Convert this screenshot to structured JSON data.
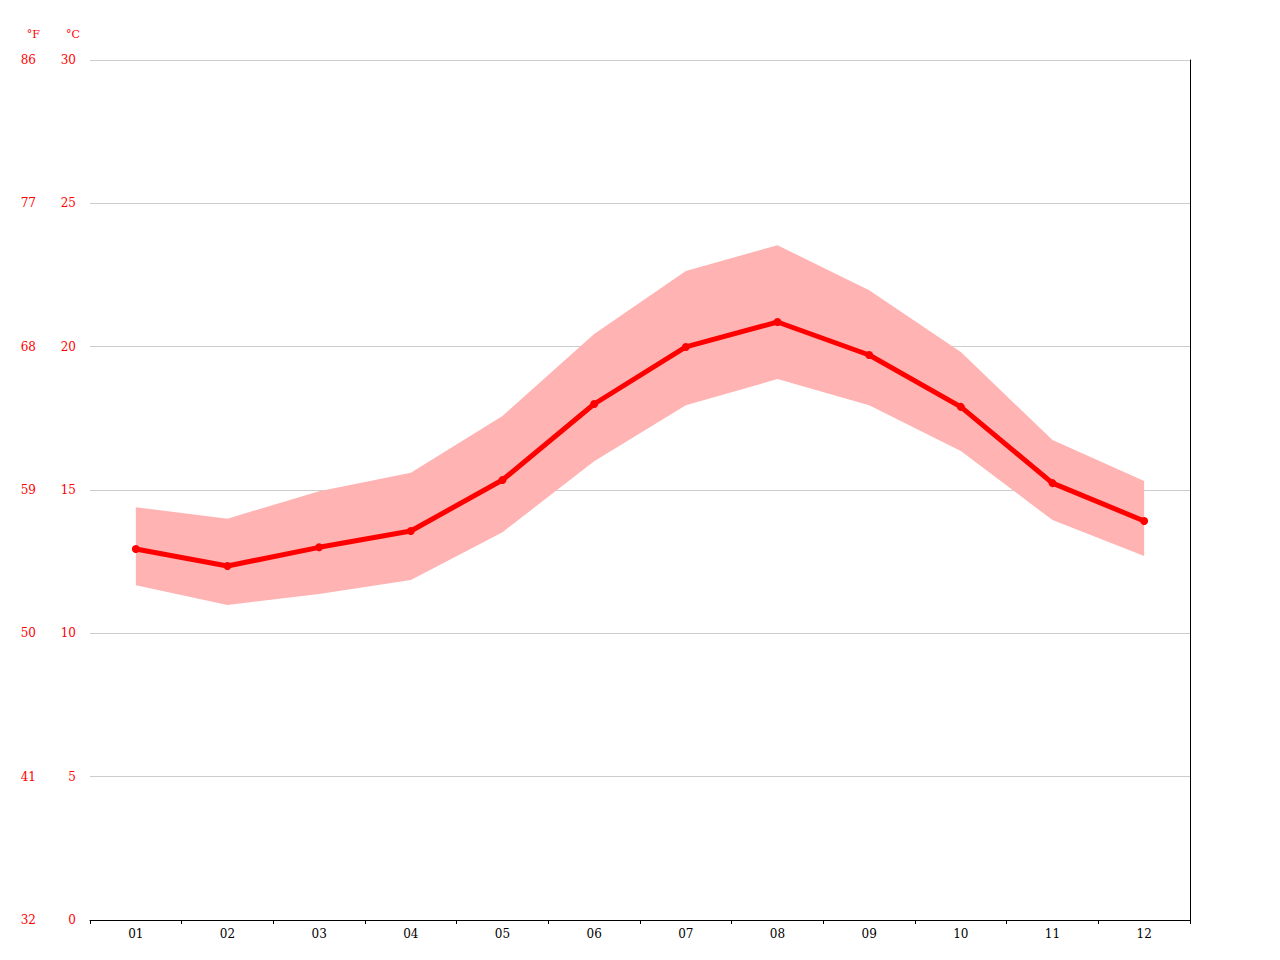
{
  "chart_data": {
    "type": "line",
    "categories": [
      "01",
      "02",
      "03",
      "04",
      "05",
      "06",
      "07",
      "08",
      "09",
      "10",
      "11",
      "12"
    ],
    "values": [
      12.94,
      12.35,
      13.0,
      13.57,
      15.35,
      18.0,
      19.99,
      20.86,
      19.71,
      17.9,
      15.24,
      13.92
    ],
    "band": {
      "lower": [
        11.68,
        10.99,
        11.37,
        11.86,
        13.53,
        16.0,
        17.96,
        18.87,
        17.96,
        16.36,
        13.95,
        12.7
      ],
      "upper": [
        14.4,
        14.0,
        14.96,
        15.6,
        17.58,
        20.44,
        22.64,
        23.54,
        21.97,
        19.81,
        16.74,
        15.31
      ]
    },
    "color": "#ff0000",
    "marker": "circle",
    "ylabel": "°C",
    "ylim": [
      0,
      30
    ],
    "yticks": [
      0,
      5,
      10,
      15,
      20,
      25,
      30
    ],
    "y2label": "°F",
    "y2lim": [
      32,
      86
    ],
    "y2ticks": [
      32,
      41,
      50,
      59,
      68,
      77,
      86
    ],
    "grid": true
  }
}
